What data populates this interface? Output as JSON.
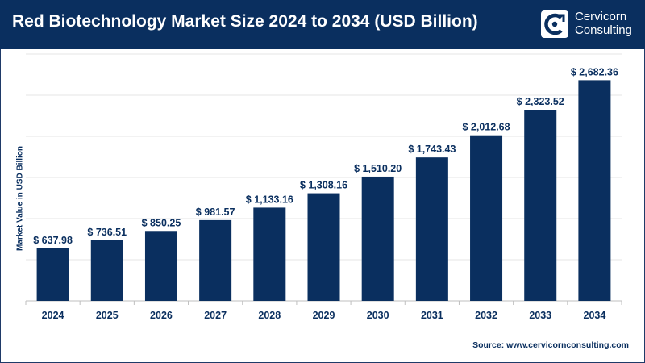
{
  "header": {
    "title": "Red Biotechnology Market Size 2024 to 2034 (USD Billion)",
    "logo_line1": "Cervicorn",
    "logo_line2": "Consulting",
    "logo_icon": "cervicorn-logo-icon"
  },
  "source": "Source: www.cervicornconsulting.com",
  "colors": {
    "bar": "#0a2f5f",
    "header_bg": "#0a2f5f",
    "text": "#0a2f5f"
  },
  "chart_data": {
    "type": "bar",
    "title": "Red Biotechnology Market Size 2024 to 2034 (USD Billion)",
    "xlabel": "",
    "ylabel": "Market Value in USD Billion",
    "categories": [
      "2024",
      "2025",
      "2026",
      "2027",
      "2028",
      "2029",
      "2030",
      "2031",
      "2032",
      "2033",
      "2034"
    ],
    "values": [
      637.98,
      736.51,
      850.25,
      981.57,
      1133.16,
      1308.16,
      1510.2,
      1743.43,
      2012.68,
      2323.52,
      2682.36
    ],
    "value_labels": [
      "$ 637.98",
      "$ 736.51",
      "$ 850.25",
      "$ 981.57",
      "$ 1,133.16",
      "$ 1,308.16",
      "$ 1,510.20",
      "$ 1,743.43",
      "$ 2,012.68",
      "$ 2,323.52",
      "$ 2,682.36"
    ],
    "ylim": [
      0,
      3000
    ],
    "grid": true,
    "legend": "none"
  }
}
